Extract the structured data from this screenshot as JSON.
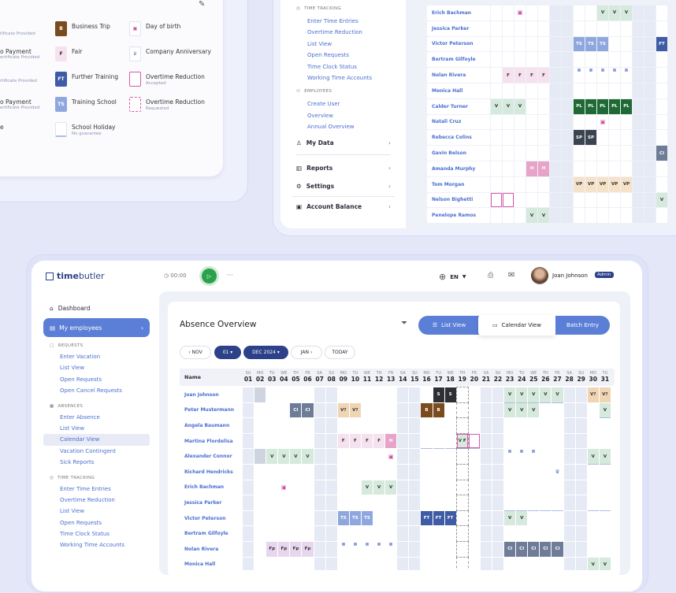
{
  "colors": {
    "V": "#d5e9dc",
    "V?": "#f0d5b5",
    "S": "#2e3035",
    "CI": "#6e7c97",
    "B": "#7a4b1d",
    "F": "#f6e2ee",
    "Fp": "#e8d6ee",
    "H": "#e7a3c8",
    "TS": "#8ea8df",
    "FT": "#3e5ba6",
    "PL": "#1f6a34",
    "SP": "#3c4350",
    "VP": "#f6e2c9",
    "grey": "#cfd5e0",
    "accent": "#5b7fd6",
    "navy": "#2c4188"
  },
  "light_text_codes": [
    "S",
    "CI",
    "B",
    "H",
    "TS",
    "FT",
    "PL",
    "SP"
  ],
  "legend": {
    "fragments": [
      {
        "sub": "tificate Provided"
      },
      {
        "title": "o Payment",
        "sub": "ertificate Provided"
      },
      {
        "sub": "rtificate Provided"
      },
      {
        "title": "o Payment",
        "sub": "ertificate Provided"
      },
      {
        "title": "e"
      }
    ],
    "items": [
      {
        "code": "B",
        "label": "Business Trip"
      },
      {
        "code": "F",
        "label": "Fair"
      },
      {
        "code": "FT",
        "label": "Further Training"
      },
      {
        "code": "TS",
        "label": "Training School"
      },
      {
        "code": "",
        "label": "School Holiday",
        "sub": "No guarantee"
      },
      {
        "icon": "birthday",
        "label": "Day of birth"
      },
      {
        "icon": "anniversary",
        "label": "Company Anniversary"
      },
      {
        "icon": "ot-accepted",
        "label": "Overtime Reduction",
        "sub": "Accepted"
      },
      {
        "icon": "ot-requested",
        "label": "Overtime Reduction",
        "sub": "Requested"
      }
    ]
  },
  "top_panel": {
    "sidebar": {
      "time_tracking": "TIME TRACKING",
      "tt_items": [
        "Enter Time Entries",
        "Overtime Reduction",
        "List View",
        "Open Requests",
        "Time Clock Status",
        "Working Time Accounts"
      ],
      "employees": "EMPLOYEES",
      "emp_items": [
        "Create User",
        "Overview",
        "Annual Overview"
      ],
      "my_data": "My Data",
      "reports": "Reports",
      "settings": "Settings",
      "account_balance": "Account Balance"
    },
    "rows": [
      {
        "name": "Erich Bachman",
        "cells": {
          "9": "V",
          "10": "V",
          "11": "V"
        },
        "icons": {
          "2": "birthday"
        }
      },
      {
        "name": "Jessica Parker",
        "cells": {}
      },
      {
        "name": "Victor Peterson",
        "cells": {
          "7": "TS",
          "8": "TS",
          "9": "TS",
          "14": "FT"
        }
      },
      {
        "name": "Bertram Gilfoyle",
        "cells": {}
      },
      {
        "name": "Nolan Rivera",
        "cells": {
          "1": "F",
          "2": "F",
          "3": "F",
          "4": "F"
        },
        "dots": [
          7,
          8,
          9,
          10,
          11
        ]
      },
      {
        "name": "Monica Hall",
        "cells": {}
      },
      {
        "name": "Calder Turner",
        "cells": {
          "0": "V",
          "1": "V",
          "2": "V",
          "7": "PL",
          "8": "PL",
          "9": "PL",
          "10": "PL",
          "11": "PL"
        }
      },
      {
        "name": "Natali Cruz",
        "cells": {},
        "icons": {
          "9": "birthday"
        }
      },
      {
        "name": "Rebecca Colins",
        "cells": {
          "7": "SP",
          "8": "SP"
        }
      },
      {
        "name": "Gavin Belson",
        "cells": {
          "14": "CI"
        }
      },
      {
        "name": "Amanda Murphy",
        "cells": {
          "3": "H",
          "4": "H"
        }
      },
      {
        "name": "Tom Morgan",
        "cells": {
          "7": "VP",
          "8": "VP",
          "9": "VP",
          "10": "VP",
          "11": "VP"
        }
      },
      {
        "name": "Nelson Bighetti",
        "cells": {
          "14": "V"
        },
        "ot": [
          0,
          1
        ]
      },
      {
        "name": "Penelope Ramos",
        "cells": {
          "3": "V",
          "4": "V"
        }
      }
    ],
    "weekend_cols": [
      5,
      6,
      12,
      13
    ]
  },
  "header": {
    "logo_a": "time",
    "logo_b": "butler",
    "timer": "00:00",
    "more": "···",
    "lang": "EN",
    "user": "Joan Johnson",
    "role": "Admin"
  },
  "sidebar": {
    "dashboard": "Dashboard",
    "my_employees": "My employees",
    "requests": "REQUESTS",
    "req_items": [
      "Enter Vacation",
      "List View",
      "Open Requests",
      "Open Cancel Requests"
    ],
    "absences": "ABSENCES",
    "abs_items": [
      "Enter Absence",
      "List View",
      "Calendar View",
      "Vacation Contingent",
      "Sick Reports"
    ],
    "time_tracking": "TIME TRACKING",
    "tt_items": [
      "Enter Time Entries",
      "Overtime Reduction",
      "List View",
      "Open Requests",
      "Time Clock Status",
      "Working Time Accounts"
    ]
  },
  "main": {
    "title": "Absence Overview",
    "list_view": "List View",
    "calendar_view": "Calendar View",
    "batch_entry": "Batch Entry",
    "nav": {
      "prev": "NOV",
      "day": "01",
      "month": "DEC 2024",
      "next": "JAN",
      "today": "TODAY"
    },
    "name_header": "Name",
    "day_names": [
      "SU",
      "MO",
      "TU",
      "WE",
      "TH",
      "FR",
      "SA",
      "SU",
      "MO",
      "TU",
      "WE",
      "TH",
      "FR",
      "SA",
      "SU",
      "MO",
      "TU",
      "WE",
      "TH",
      "FR",
      "SA",
      "SU",
      "MO",
      "TU",
      "WE",
      "TH",
      "FR",
      "SA",
      "SU",
      "MO",
      "TU"
    ],
    "days": [
      "01",
      "02",
      "03",
      "04",
      "05",
      "06",
      "07",
      "08",
      "09",
      "10",
      "11",
      "12",
      "13",
      "14",
      "15",
      "16",
      "17",
      "18",
      "19",
      "20",
      "21",
      "22",
      "23",
      "24",
      "25",
      "26",
      "27",
      "28",
      "29",
      "30",
      "31"
    ],
    "rows": [
      {
        "name": "Joan Johnson",
        "cells": {
          "17": "S",
          "18": "S",
          "23": "V",
          "24": "V",
          "25": "V",
          "26": "V",
          "27": "V",
          "30": "V?",
          "31": "V?"
        },
        "grey": [
          2
        ],
        "under": [
          23,
          24,
          25,
          26,
          27
        ]
      },
      {
        "name": "Peter Mustermann",
        "cells": {
          "5": "CI",
          "6": "CI",
          "9": "V?",
          "10": "V?",
          "16": "B",
          "17": "B",
          "23": "V",
          "24": "V",
          "25": "V",
          "31": "V"
        },
        "under": [
          31
        ]
      },
      {
        "name": "Angela Baumann",
        "cells": {}
      },
      {
        "name": "Martina Flordelisa",
        "cells": {
          "9": "F",
          "10": "F",
          "11": "F",
          "12": "F",
          "13": "H",
          "19": "V F"
        },
        "ot": [
          19,
          20
        ],
        "under": [
          16,
          17,
          18,
          19,
          20
        ]
      },
      {
        "name": "Alexander Connor",
        "cells": {
          "3": "V",
          "4": "V",
          "5": "V",
          "6": "V",
          "30": "V",
          "31": "V"
        },
        "grey": [
          2
        ],
        "icons": {
          "13": "birthday"
        },
        "dots": [
          23,
          24,
          25
        ],
        "under": [
          30,
          31
        ]
      },
      {
        "name": "Richard Hendricks",
        "cells": {},
        "icons": {
          "27": "anniversary"
        }
      },
      {
        "name": "Erich Bachman",
        "cells": {
          "11": "V",
          "12": "V",
          "13": "V"
        },
        "icons": {
          "4": "birthday"
        }
      },
      {
        "name": "Jessica Parker",
        "cells": {},
        "under": [
          23,
          24,
          25,
          26,
          27,
          30,
          31
        ]
      },
      {
        "name": "Victor Peterson",
        "cells": {
          "9": "TS",
          "10": "TS",
          "11": "TS",
          "16": "FT",
          "17": "FT",
          "18": "FT",
          "23": "V",
          "24": "V"
        }
      },
      {
        "name": "Bertram Gilfoyle",
        "cells": {}
      },
      {
        "name": "Nolan Rivera",
        "cells": {
          "3": "Fp",
          "4": "Fp",
          "5": "Fp",
          "6": "Fp",
          "23": "CI",
          "24": "CI",
          "25": "CI",
          "26": "CI",
          "27": "CI"
        },
        "dots": [
          9,
          10,
          11,
          12,
          13
        ]
      },
      {
        "name": "Monica Hall",
        "cells": {
          "30": "V",
          "31": "V"
        }
      }
    ]
  }
}
